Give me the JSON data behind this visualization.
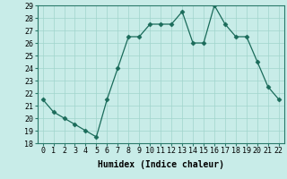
{
  "x": [
    0,
    1,
    2,
    3,
    4,
    5,
    6,
    7,
    8,
    9,
    10,
    11,
    12,
    13,
    14,
    15,
    16,
    17,
    18,
    19,
    20,
    21,
    22
  ],
  "y": [
    21.5,
    20.5,
    20.0,
    19.5,
    19.0,
    18.5,
    21.5,
    24.0,
    26.5,
    26.5,
    27.5,
    27.5,
    27.5,
    28.5,
    26.0,
    26.0,
    29.0,
    27.5,
    26.5,
    26.5,
    24.5,
    22.5,
    21.5
  ],
  "line_color": "#1a6b5a",
  "marker": "D",
  "marker_size": 2.5,
  "bg_color": "#c8ece8",
  "grid_color": "#a0d4cc",
  "xlabel": "Humidex (Indice chaleur)",
  "ylabel": "",
  "xlim": [
    -0.5,
    22.5
  ],
  "ylim": [
    18,
    29
  ],
  "yticks": [
    18,
    19,
    20,
    21,
    22,
    23,
    24,
    25,
    26,
    27,
    28,
    29
  ],
  "xticks": [
    0,
    1,
    2,
    3,
    4,
    5,
    6,
    7,
    8,
    9,
    10,
    11,
    12,
    13,
    14,
    15,
    16,
    17,
    18,
    19,
    20,
    21,
    22
  ],
  "label_fontsize": 7,
  "tick_fontsize": 6
}
